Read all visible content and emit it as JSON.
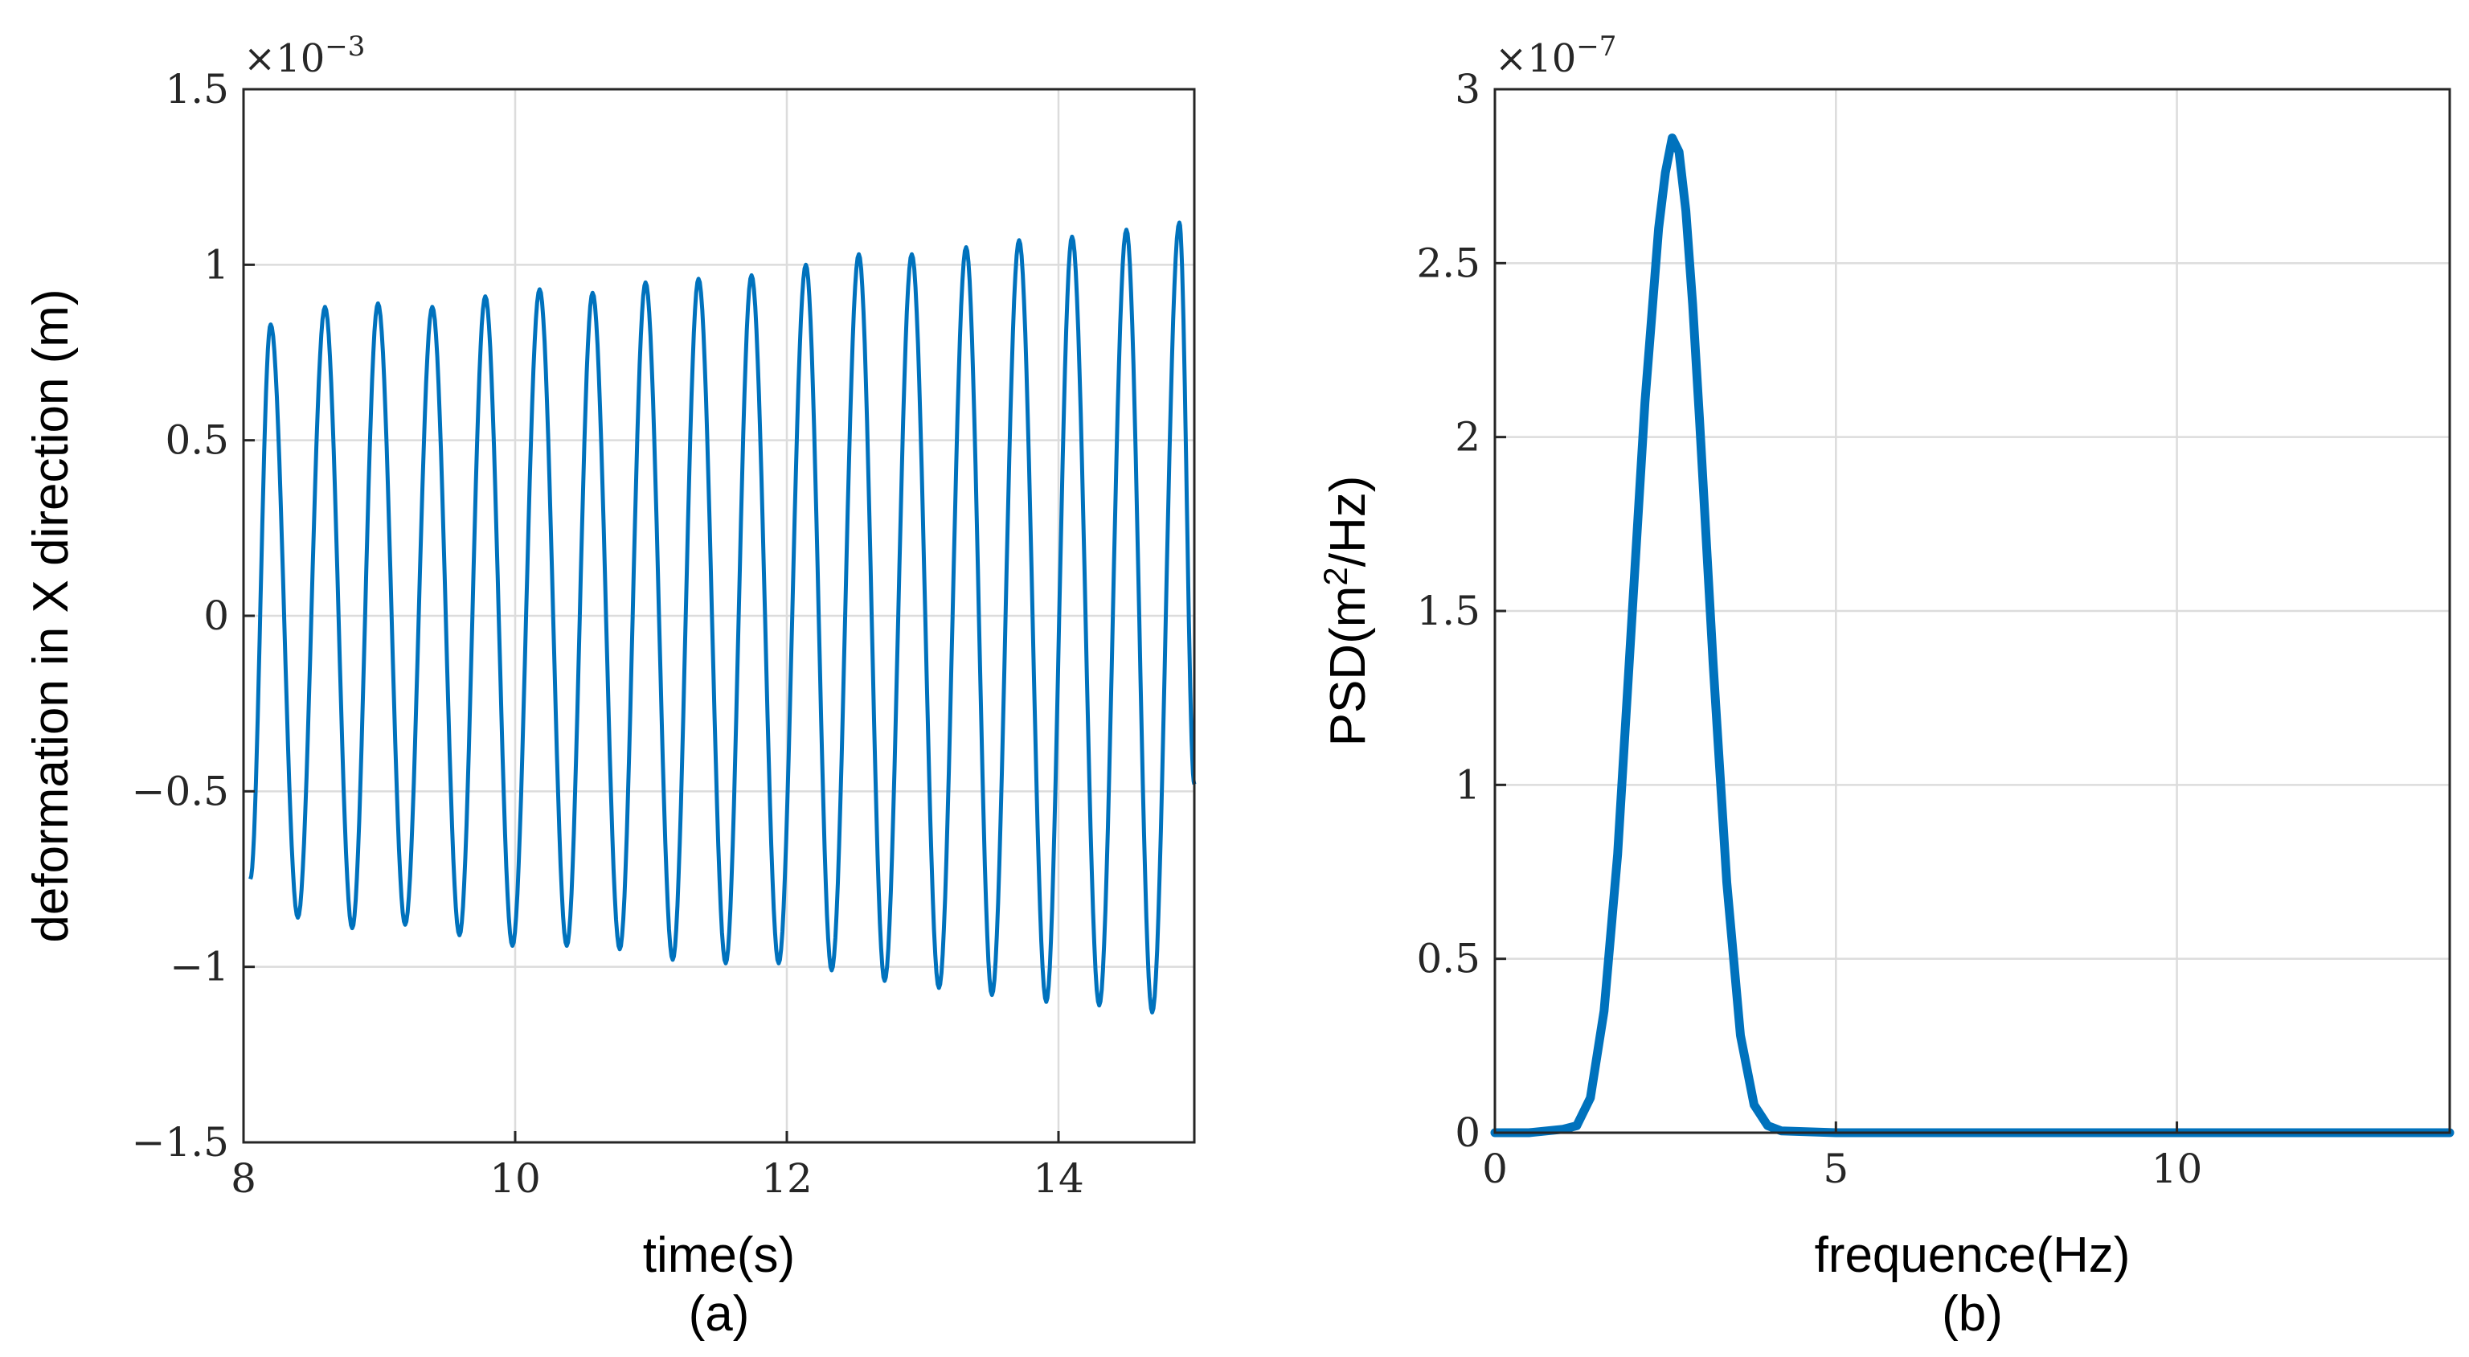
{
  "colors": {
    "series": "#0072BD",
    "axis": "#262626",
    "grid": "#dcdcdc",
    "background": "#ffffff"
  },
  "chart_data": [
    {
      "type": "line",
      "panel": "left",
      "caption": "(a)",
      "title": "",
      "xlabel": "time(s)",
      "ylabel": "deformation in X direction (m)",
      "xlim": [
        8,
        15
      ],
      "ylim": [
        -1.5,
        1.5
      ],
      "xticks": [
        8,
        10,
        12,
        14
      ],
      "xtick_labels": [
        "8",
        "10",
        "12",
        "14"
      ],
      "yticks": [
        -1.5,
        -1,
        -0.5,
        0,
        0.5,
        1,
        1.5
      ],
      "ytick_labels": [
        "−1.5",
        "−1",
        "−0.5",
        "0",
        "0.5",
        "1",
        "1.5"
      ],
      "y_exponent_base": "×10",
      "y_exponent_power": "−3",
      "grid": true,
      "series": [
        {
          "name": "deformation",
          "color": "#0072BD",
          "start": {
            "t": 8.05,
            "v": -0.75
          },
          "end": {
            "t": 15.0,
            "v": -0.48
          },
          "extrema": [
            {
              "t": 8.2,
              "v": 0.83
            },
            {
              "t": 8.4,
              "v": -0.86
            },
            {
              "t": 8.6,
              "v": 0.88
            },
            {
              "t": 8.8,
              "v": -0.89
            },
            {
              "t": 8.99,
              "v": 0.89
            },
            {
              "t": 9.19,
              "v": -0.88
            },
            {
              "t": 9.39,
              "v": 0.88
            },
            {
              "t": 9.59,
              "v": -0.91
            },
            {
              "t": 9.78,
              "v": 0.91
            },
            {
              "t": 9.98,
              "v": -0.94
            },
            {
              "t": 10.18,
              "v": 0.93
            },
            {
              "t": 10.38,
              "v": -0.94
            },
            {
              "t": 10.57,
              "v": 0.92
            },
            {
              "t": 10.77,
              "v": -0.95
            },
            {
              "t": 10.96,
              "v": 0.95
            },
            {
              "t": 11.16,
              "v": -0.98
            },
            {
              "t": 11.35,
              "v": 0.96
            },
            {
              "t": 11.55,
              "v": -0.99
            },
            {
              "t": 11.74,
              "v": 0.97
            },
            {
              "t": 11.94,
              "v": -0.99
            },
            {
              "t": 12.14,
              "v": 1.0
            },
            {
              "t": 12.33,
              "v": -1.01
            },
            {
              "t": 12.53,
              "v": 1.03
            },
            {
              "t": 12.72,
              "v": -1.04
            },
            {
              "t": 12.92,
              "v": 1.03
            },
            {
              "t": 13.12,
              "v": -1.06
            },
            {
              "t": 13.32,
              "v": 1.05
            },
            {
              "t": 13.51,
              "v": -1.08
            },
            {
              "t": 13.71,
              "v": 1.07
            },
            {
              "t": 13.91,
              "v": -1.1
            },
            {
              "t": 14.1,
              "v": 1.08
            },
            {
              "t": 14.3,
              "v": -1.11
            },
            {
              "t": 14.5,
              "v": 1.1
            },
            {
              "t": 14.69,
              "v": -1.13
            },
            {
              "t": 14.89,
              "v": 1.12
            }
          ]
        }
      ]
    },
    {
      "type": "line",
      "panel": "right",
      "caption": "(b)",
      "title": "",
      "xlabel": "frequence(Hz)",
      "ylabel_pre": "PSD(m",
      "ylabel_sup": "2",
      "ylabel_post": "/Hz)",
      "xlim": [
        0,
        14
      ],
      "ylim": [
        0,
        3
      ],
      "xticks": [
        0,
        5,
        10
      ],
      "xtick_labels": [
        "0",
        "5",
        "10"
      ],
      "yticks": [
        0,
        0.5,
        1,
        1.5,
        2,
        2.5,
        3
      ],
      "ytick_labels": [
        "0",
        "0.5",
        "1",
        "1.5",
        "2",
        "2.5",
        "3"
      ],
      "y_exponent_base": "×10",
      "y_exponent_power": "−7",
      "grid": true,
      "series": [
        {
          "name": "PSD",
          "color": "#0072BD",
          "x": [
            0,
            0.5,
            1.0,
            1.2,
            1.4,
            1.6,
            1.8,
            2.0,
            2.2,
            2.4,
            2.5,
            2.6,
            2.7,
            2.8,
            2.9,
            3.0,
            3.2,
            3.4,
            3.6,
            3.8,
            4.0,
            4.2,
            5,
            8,
            11,
            14
          ],
          "y": [
            0,
            0,
            0.01,
            0.02,
            0.1,
            0.35,
            0.8,
            1.45,
            2.1,
            2.6,
            2.76,
            2.86,
            2.82,
            2.65,
            2.38,
            2.05,
            1.35,
            0.72,
            0.28,
            0.08,
            0.02,
            0.005,
            0,
            0,
            0,
            0
          ]
        }
      ]
    }
  ]
}
